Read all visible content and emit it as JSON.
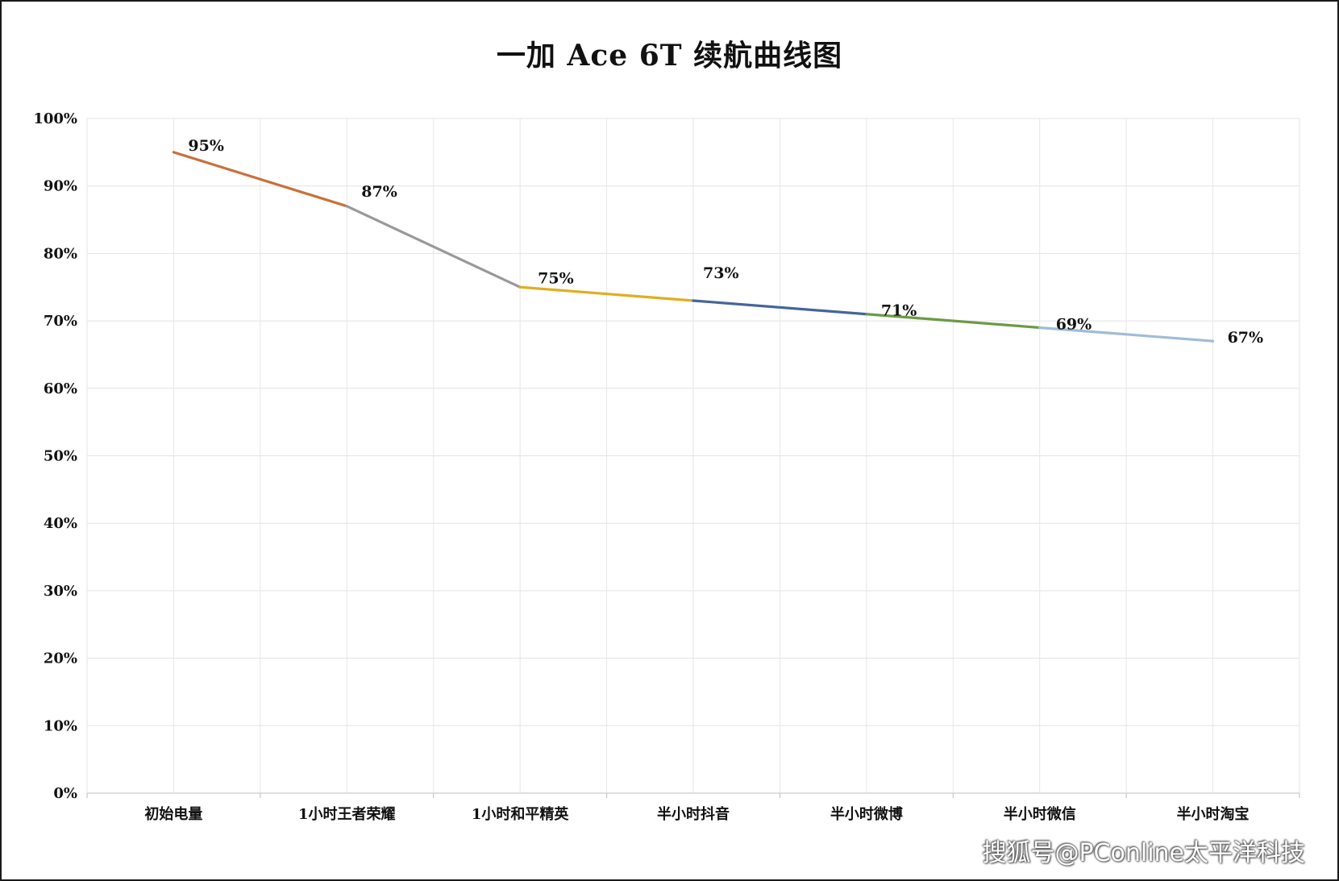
{
  "chart_data": {
    "type": "line",
    "title": "一加 Ace 6T 续航曲线图",
    "xlabel": "",
    "ylabel": "",
    "categories": [
      "初始电量",
      "1小时王者荣耀",
      "1小时和平精英",
      "半小时抖音",
      "半小时微博",
      "半小时微信",
      "半小时淘宝"
    ],
    "values": [
      95,
      87,
      75,
      73,
      71,
      69,
      67
    ],
    "data_labels": [
      "95%",
      "87%",
      "75%",
      "73%",
      "71%",
      "69%",
      "67%"
    ],
    "segment_colors": [
      "#c8703a",
      "#999999",
      "#e0ae1e",
      "#45659b",
      "#6b9a45",
      "#9fbcd8"
    ],
    "ylim": [
      0,
      100
    ],
    "yticks": [
      0,
      10,
      20,
      30,
      40,
      50,
      60,
      70,
      80,
      90,
      100
    ],
    "ytick_labels": [
      "0%",
      "10%",
      "20%",
      "30%",
      "40%",
      "50%",
      "60%",
      "70%",
      "80%",
      "90%",
      "100%"
    ],
    "grid": true,
    "legend": "none"
  },
  "watermark": "搜狐号@PConline太平洋科技"
}
